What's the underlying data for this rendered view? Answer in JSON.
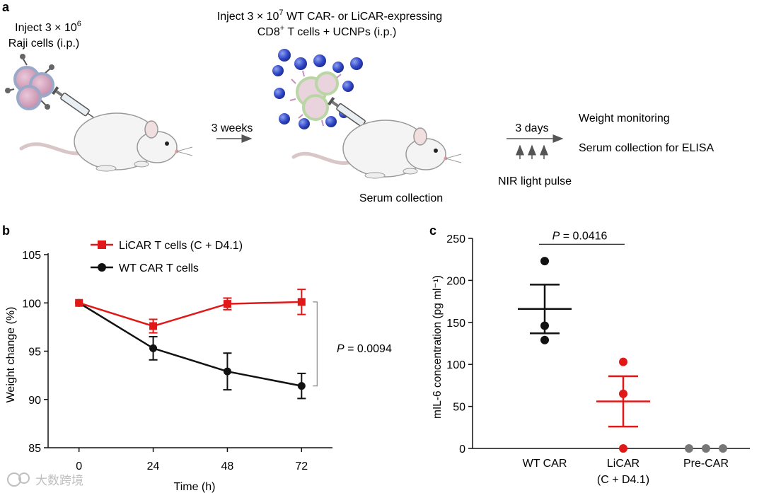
{
  "panel_a": {
    "label": "a",
    "inject_raji_line1": "Inject 3 × 10",
    "inject_raji_exp": "6",
    "inject_raji_line2": "Raji cells (i.p.)",
    "inject_car_pre": "Inject 3 × 10",
    "inject_car_exp": "7",
    "inject_car_post": " WT CAR- or LiCAR-expressing",
    "inject_car_line2_pre": "CD8",
    "inject_car_line2_sup": "+",
    "inject_car_line2_post": " T cells + UCNPs (i.p.)",
    "arrow1_label": "3 weeks",
    "serum_label": "Serum collection",
    "arrow2_label": "3 days",
    "nir_label": "NIR light pulse",
    "outcome1": "Weight monitoring",
    "outcome2": "Serum collection for ELISA"
  },
  "watermark": "大数跨境",
  "chart_data": [
    {
      "panel": "b",
      "type": "line",
      "xlabel": "Time (h)",
      "ylabel": "Weight change (%)",
      "x": [
        0,
        24,
        48,
        72
      ],
      "xticks": [
        "0",
        "24",
        "48",
        "72"
      ],
      "yticks": [
        "85",
        "90",
        "95",
        "100",
        "105"
      ],
      "ylim": [
        85,
        105
      ],
      "xlim": [
        -10,
        82
      ],
      "legend_position": "top-left",
      "series": [
        {
          "name": "LiCAR T cells (C + D4.1)",
          "color": "#e01818",
          "marker": "square",
          "values": [
            100.0,
            97.6,
            99.9,
            100.1
          ],
          "errors": [
            0.0,
            0.7,
            0.6,
            1.3
          ]
        },
        {
          "name": "WT CAR T cells",
          "color": "#111111",
          "marker": "circle",
          "values": [
            100.0,
            95.3,
            92.9,
            91.4
          ],
          "errors": [
            0.0,
            1.2,
            1.9,
            1.3
          ]
        }
      ],
      "annotation": {
        "italic": "P",
        "text": " = 0.0094"
      }
    },
    {
      "panel": "c",
      "type": "scatter",
      "ylabel": "mIL-6 concentration (pg ml⁻¹)",
      "ylim": [
        0,
        250
      ],
      "yticks": [
        "0",
        "50",
        "100",
        "150",
        "200",
        "250"
      ],
      "categories": [
        "WT CAR",
        "LiCAR",
        "Pre-CAR"
      ],
      "category_sublabels": [
        "",
        "(C + D4.1)",
        ""
      ],
      "groups": [
        {
          "name": "WT CAR",
          "color": "#111111",
          "points": [
            223,
            146,
            129
          ],
          "mean": 166,
          "sem": 29
        },
        {
          "name": "LiCAR",
          "color": "#e01818",
          "points": [
            103,
            65,
            0
          ],
          "mean": 56,
          "sem": 30
        },
        {
          "name": "Pre-CAR",
          "color": "#777777",
          "points": [
            0,
            0,
            0
          ],
          "mean": 0,
          "sem": 0
        }
      ],
      "annotation": {
        "italic": "P",
        "text": " = 0.0416"
      }
    }
  ]
}
